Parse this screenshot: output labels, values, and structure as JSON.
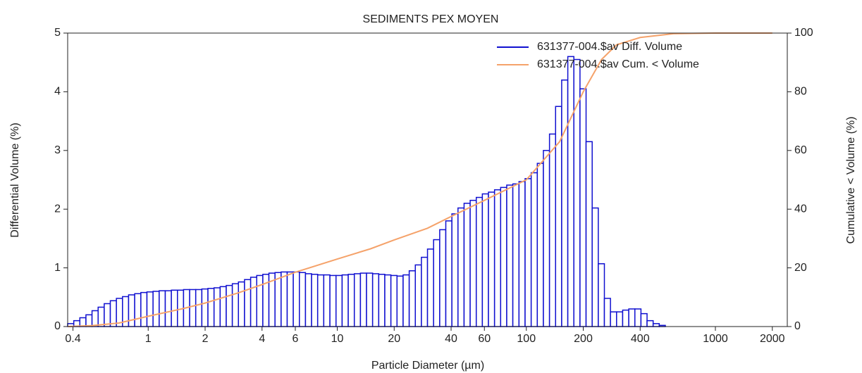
{
  "chart_data": {
    "type": "histogram",
    "title": "SEDIMENTS PEX MOYEN",
    "x_label": "Particle Diameter (µm)",
    "y_label": "Differential Volume (%)",
    "y2_label": "Cumulative < Volume (%)",
    "xscale": "log",
    "xlim": [
      0.375,
      2400
    ],
    "xticks": [
      0.4,
      1,
      2,
      4,
      6,
      10,
      20,
      40,
      60,
      100,
      200,
      400,
      1000,
      2000
    ],
    "ylim": [
      0,
      5
    ],
    "yticks": [
      0,
      1,
      2,
      3,
      4,
      5
    ],
    "y2lim": [
      0,
      100
    ],
    "y2ticks": [
      0,
      20,
      40,
      60,
      80,
      100
    ],
    "legend": "upper right",
    "bins": [
      0.375,
      0.404,
      0.435,
      0.4685,
      0.5046,
      0.5435,
      0.5853,
      0.6304,
      0.679,
      0.7313,
      0.7876,
      0.8483,
      0.9144,
      0.9849,
      1.061,
      1.143,
      1.231,
      1.326,
      1.428,
      1.538,
      1.657,
      1.784,
      1.922,
      2.07,
      2.23,
      2.402,
      2.587,
      2.786,
      3.001,
      3.232,
      3.482,
      3.75,
      4.039,
      4.35,
      4.685,
      5.046,
      5.435,
      5.853,
      6.304,
      6.79,
      7.313,
      7.876,
      8.483,
      9.144,
      9.849,
      10.61,
      11.43,
      12.31,
      13.26,
      14.28,
      15.38,
      16.57,
      17.84,
      19.22,
      20.7,
      22.3,
      24.02,
      25.87,
      27.86,
      30.01,
      32.32,
      34.82,
      37.5,
      40.39,
      43.5,
      46.85,
      50.46,
      54.35,
      58.53,
      63.04,
      67.9,
      73.13,
      78.76,
      84.83,
      91.44,
      98.49,
      106.1,
      114.3,
      123.1,
      132.6,
      142.8,
      153.8,
      165.7,
      178.4,
      192.2,
      207,
      223,
      240.2,
      258.7,
      278.6,
      300.1,
      323.2,
      348.2,
      375,
      403.9,
      435,
      468.5,
      504.6,
      543.5
    ],
    "series": [
      {
        "name": "631377-004.$av Diff. Volume",
        "type": "histogram",
        "color": "#1010d0",
        "values": [
          0.05,
          0.1,
          0.15,
          0.2,
          0.27,
          0.33,
          0.39,
          0.44,
          0.48,
          0.51,
          0.54,
          0.56,
          0.58,
          0.59,
          0.6,
          0.61,
          0.61,
          0.62,
          0.62,
          0.63,
          0.63,
          0.63,
          0.64,
          0.65,
          0.66,
          0.68,
          0.7,
          0.73,
          0.76,
          0.8,
          0.84,
          0.87,
          0.89,
          0.91,
          0.92,
          0.93,
          0.93,
          0.93,
          0.92,
          0.9,
          0.89,
          0.88,
          0.88,
          0.87,
          0.87,
          0.88,
          0.89,
          0.9,
          0.91,
          0.91,
          0.9,
          0.89,
          0.88,
          0.87,
          0.86,
          0.88,
          0.95,
          1.05,
          1.18,
          1.32,
          1.48,
          1.65,
          1.8,
          1.92,
          2.02,
          2.1,
          2.15,
          2.2,
          2.26,
          2.29,
          2.33,
          2.37,
          2.41,
          2.43,
          2.47,
          2.52,
          2.62,
          2.78,
          3.0,
          3.28,
          3.75,
          4.2,
          4.6,
          4.55,
          4.05,
          3.15,
          2.02,
          1.07,
          0.48,
          0.25,
          0.25,
          0.28,
          0.3,
          0.3,
          0.22,
          0.1,
          0.05,
          0.02
        ]
      },
      {
        "name": "631377-004.$av Cum. < Volume",
        "type": "line",
        "color": "#f5a26a",
        "axis": "y2",
        "x": [
          0.375,
          0.5,
          0.7,
          1,
          1.5,
          2,
          3,
          4,
          6,
          10,
          15,
          20,
          30,
          40,
          60,
          100,
          150,
          200,
          250,
          300,
          400,
          600,
          1000,
          2000
        ],
        "values": [
          0,
          0.3,
          1.2,
          3.5,
          6,
          8,
          11.5,
          14.3,
          18.5,
          23,
          26.5,
          29.5,
          33.5,
          37.5,
          43,
          50,
          63,
          80,
          91,
          96,
          98.5,
          99.8,
          100,
          100
        ]
      }
    ]
  }
}
